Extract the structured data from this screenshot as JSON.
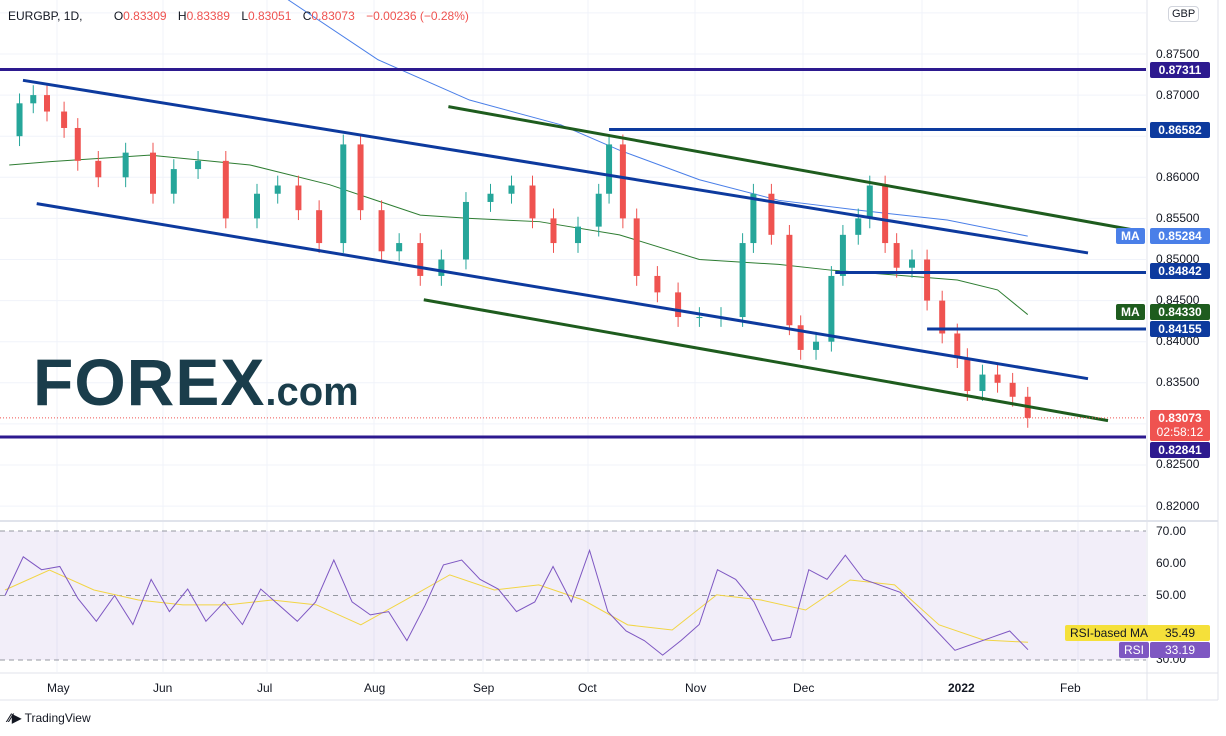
{
  "header": {
    "symbol": "EURGBP, 1D,",
    "o_label": "O",
    "o": "0.83309",
    "h_label": "H",
    "h": "0.83389",
    "l_label": "L",
    "l": "0.83051",
    "c_label": "C",
    "c": "0.83073",
    "change": "−0.00236 (−0.28%)"
  },
  "currency": "GBP",
  "price_axis": [
    "0.87500",
    "0.87000",
    "0.86000",
    "0.85500",
    "0.85000",
    "0.84500",
    "0.84000",
    "0.83500",
    "0.82500",
    "0.82000"
  ],
  "badges": {
    "level_87311": "0.87311",
    "level_86582": "0.86582",
    "ma_blue_label": "MA",
    "ma_blue": "0.85284",
    "level_84842": "0.84842",
    "ma_green_label": "MA",
    "ma_green": "0.84330",
    "level_84155": "0.84155",
    "last_price": "0.83073",
    "countdown": "02:58:12",
    "level_82841": "0.82841"
  },
  "rsi_axis": [
    "70.00",
    "60.00",
    "50.00",
    "30.00"
  ],
  "rsi_badges": {
    "ma_label": "RSI-based MA",
    "ma_value": "35.49",
    "rsi_label": "RSI",
    "rsi_value": "33.19"
  },
  "time_axis": [
    "May",
    "Jun",
    "Jul",
    "Aug",
    "Sep",
    "Oct",
    "Nov",
    "Dec",
    "2022",
    "Feb"
  ],
  "logo": {
    "main": "FOREX",
    "suffix": ".com"
  },
  "footer": "TradingView",
  "colors": {
    "up": "#26a69a",
    "down": "#ef5350",
    "channel": "#0d3a9e",
    "green_line": "#1e5c1e",
    "level": "#2d1a8f",
    "ma_blue": "#4a7fe8",
    "ma_green": "#2e7d32",
    "rsi": "#7e57c2",
    "rsi_ma": "#f2d544"
  },
  "chart_data": {
    "type": "candlestick",
    "symbol": "EURGBP",
    "interval": "1D",
    "ylim": [
      0.8185,
      0.8815
    ],
    "closes": [
      [
        "2021-04-20",
        0.865
      ],
      [
        "2021-04-23",
        0.869
      ],
      [
        "2021-04-27",
        0.87
      ],
      [
        "2021-05-01",
        0.868
      ],
      [
        "2021-05-06",
        0.866
      ],
      [
        "2021-05-10",
        0.862
      ],
      [
        "2021-05-16",
        0.86
      ],
      [
        "2021-05-24",
        0.863
      ],
      [
        "2021-06-01",
        0.858
      ],
      [
        "2021-06-07",
        0.861
      ],
      [
        "2021-06-14",
        0.862
      ],
      [
        "2021-06-22",
        0.855
      ],
      [
        "2021-07-01",
        0.858
      ],
      [
        "2021-07-07",
        0.859
      ],
      [
        "2021-07-13",
        0.856
      ],
      [
        "2021-07-19",
        0.852
      ],
      [
        "2021-07-26",
        0.864
      ],
      [
        "2021-07-31",
        0.856
      ],
      [
        "2021-08-06",
        0.851
      ],
      [
        "2021-08-11",
        0.852
      ],
      [
        "2021-08-17",
        0.848
      ],
      [
        "2021-08-23",
        0.85
      ],
      [
        "2021-08-30",
        0.857
      ],
      [
        "2021-09-06",
        0.858
      ],
      [
        "2021-09-12",
        0.859
      ],
      [
        "2021-09-18",
        0.855
      ],
      [
        "2021-09-24",
        0.852
      ],
      [
        "2021-10-01",
        0.854
      ],
      [
        "2021-10-07",
        0.858
      ],
      [
        "2021-10-10",
        0.864
      ],
      [
        "2021-10-14",
        0.855
      ],
      [
        "2021-10-18",
        0.848
      ],
      [
        "2021-10-24",
        0.846
      ],
      [
        "2021-10-30",
        0.843
      ],
      [
        "2021-11-05",
        0.843
      ],
      [
        "2021-11-11",
        0.843
      ],
      [
        "2021-11-17",
        0.852
      ],
      [
        "2021-11-20",
        0.858
      ],
      [
        "2021-11-25",
        0.853
      ],
      [
        "2021-11-30",
        0.842
      ],
      [
        "2021-12-03",
        0.839
      ],
      [
        "2021-12-07",
        0.84
      ],
      [
        "2021-12-11",
        0.848
      ],
      [
        "2021-12-14",
        0.853
      ],
      [
        "2021-12-18",
        0.855
      ],
      [
        "2021-12-21",
        0.859
      ],
      [
        "2021-12-25",
        0.852
      ],
      [
        "2021-12-28",
        0.849
      ],
      [
        "2022-01-01",
        0.85
      ],
      [
        "2022-01-04",
        0.845
      ],
      [
        "2022-01-07",
        0.841
      ],
      [
        "2022-01-10",
        0.838
      ],
      [
        "2022-01-12",
        0.834
      ],
      [
        "2022-01-15",
        0.836
      ],
      [
        "2022-01-18",
        0.835
      ],
      [
        "2022-01-21",
        0.8333
      ],
      [
        "2022-01-24",
        0.83073
      ]
    ],
    "moving_averages": [
      {
        "name": "MA",
        "color": "#4a7fe8",
        "points": [
          [
            "2021-07-10",
            0.8816
          ],
          [
            "2021-08-05",
            0.8743
          ],
          [
            "2021-08-31",
            0.8694
          ],
          [
            "2021-09-26",
            0.8664
          ],
          [
            "2021-10-13",
            0.8633
          ],
          [
            "2021-11-05",
            0.8597
          ],
          [
            "2021-11-27",
            0.8572
          ],
          [
            "2021-12-18",
            0.856
          ],
          [
            "2022-01-08",
            0.8548
          ],
          [
            "2022-01-24",
            0.85284
          ]
        ]
      },
      {
        "name": "MA",
        "color": "#2e7d32",
        "points": [
          [
            "2021-04-20",
            0.8615
          ],
          [
            "2021-05-02",
            0.8619
          ],
          [
            "2021-05-31",
            0.8627
          ],
          [
            "2021-06-29",
            0.8615
          ],
          [
            "2021-07-22",
            0.8591
          ],
          [
            "2021-08-17",
            0.8554
          ],
          [
            "2021-08-31",
            0.855
          ],
          [
            "2021-09-20",
            0.8546
          ],
          [
            "2021-10-13",
            0.853
          ],
          [
            "2021-11-05",
            0.85
          ],
          [
            "2021-11-27",
            0.8494
          ],
          [
            "2021-12-11",
            0.8487
          ],
          [
            "2021-12-28",
            0.8481
          ],
          [
            "2022-01-10",
            0.8475
          ],
          [
            "2022-01-18",
            0.8463
          ],
          [
            "2022-01-24",
            0.8433
          ]
        ]
      }
    ],
    "trendlines": [
      {
        "color": "#0d3a9e",
        "from": [
          "2021-04-24",
          0.8718
        ],
        "to": [
          "2022-02-05",
          0.8508
        ]
      },
      {
        "color": "#0d3a9e",
        "from": [
          "2021-04-28",
          0.8568
        ],
        "to": [
          "2022-02-05",
          0.8355
        ]
      },
      {
        "color": "#1e5c1e",
        "from": [
          "2021-08-25",
          0.8686
        ],
        "to": [
          "2022-02-14",
          0.8536
        ]
      },
      {
        "color": "#1e5c1e",
        "from": [
          "2021-08-18",
          0.8451
        ],
        "to": [
          "2022-02-09",
          0.8304
        ]
      }
    ],
    "horizontal_levels": [
      {
        "price": 0.87311,
        "from": "start",
        "color": "#2d1a8f"
      },
      {
        "price": 0.86582,
        "from": "2021-10-10",
        "color": "#0d3a9e"
      },
      {
        "price": 0.84842,
        "from": "2021-12-12",
        "color": "#0d3a9e"
      },
      {
        "price": 0.84155,
        "from": "2022-01-04",
        "color": "#0d3a9e"
      },
      {
        "price": 0.82841,
        "from": "start",
        "color": "#2d1a8f"
      }
    ],
    "last_price": 0.83073,
    "rsi": {
      "ylim": [
        28,
        74
      ],
      "bands": [
        30,
        50,
        70
      ],
      "values": [
        50,
        62,
        58,
        59,
        49,
        42,
        50,
        41,
        55,
        45,
        52,
        42,
        48,
        41,
        52,
        47,
        42,
        48,
        61,
        48,
        44,
        45,
        36,
        47,
        59.5,
        61,
        55,
        52,
        45,
        48,
        59,
        48,
        64,
        45,
        39,
        36,
        31.5,
        36,
        41,
        58,
        55,
        48,
        36,
        37,
        58,
        55,
        62.5,
        55,
        53,
        51,
        45,
        39,
        33,
        35,
        37,
        39,
        33.19
      ],
      "ma_values": [
        51.7,
        57.9,
        51.7,
        48.6,
        47.1,
        47.1,
        48.6,
        47.1,
        40.9,
        48.6,
        56.4,
        51.7,
        53.3,
        48.6,
        40.9,
        39.3,
        50.2,
        48.6,
        45.5,
        54.8,
        53.3,
        40.9,
        36.2,
        35.49
      ]
    }
  }
}
